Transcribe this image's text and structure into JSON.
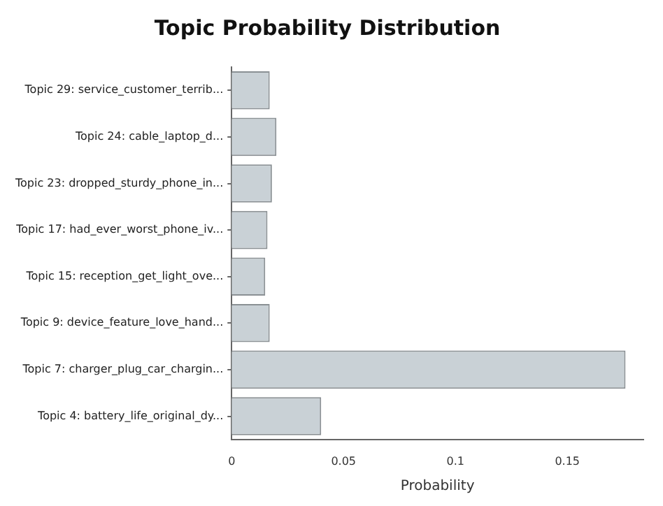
{
  "chart_data": {
    "type": "bar",
    "orientation": "horizontal",
    "title": "Topic Probability Distribution",
    "xlabel": "Probability",
    "categories": [
      "Topic 29: service_customer_terrib...",
      "Topic 24: cable_laptop_d...",
      "Topic 23: dropped_sturdy_phone_in...",
      "Topic 17: had_ever_worst_phone_iv...",
      "Topic 15: reception_get_light_ove...",
      "Topic 9: device_feature_love_hand...",
      "Topic 7: charger_plug_car_chargin...",
      "Topic 4: battery_life_original_dy..."
    ],
    "values": [
      0.017,
      0.02,
      0.018,
      0.016,
      0.015,
      0.017,
      0.176,
      0.04
    ],
    "color": "#c9d1d6",
    "xlim": [
      0,
      0.184
    ],
    "xticks": [
      0,
      0.05,
      0.1,
      0.15
    ],
    "grid": false,
    "legend": false
  }
}
